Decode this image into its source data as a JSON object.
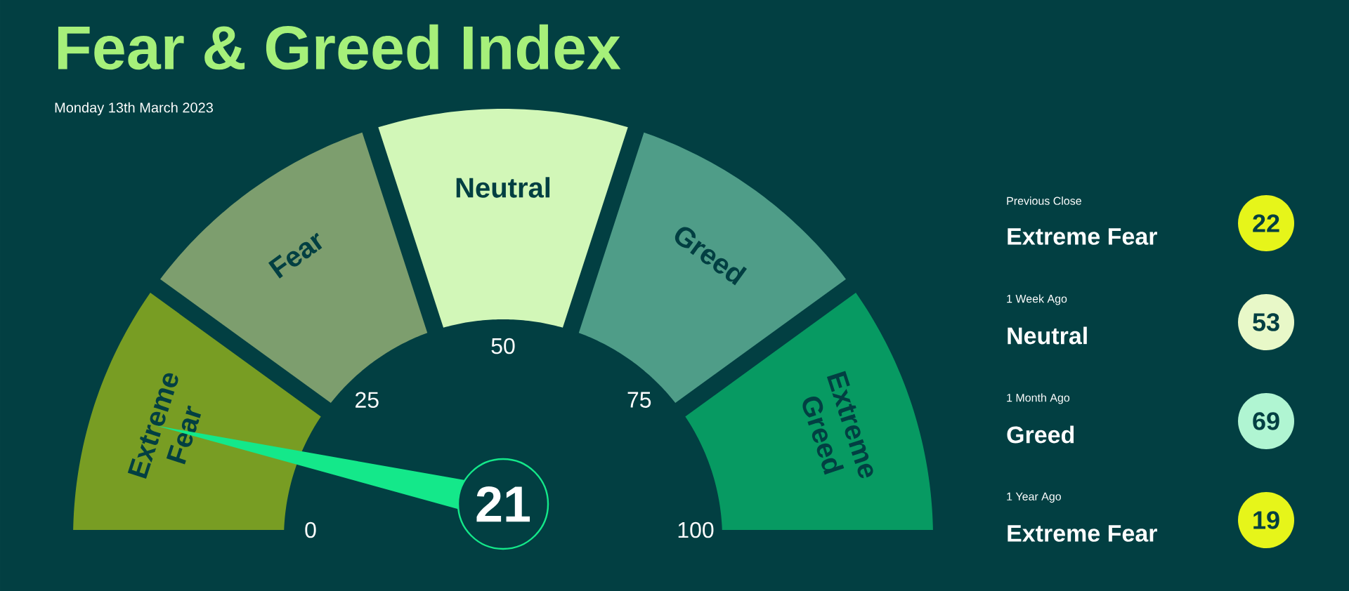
{
  "chart_data": [
    {
      "type": "donut",
      "title": "Fear & Greed Index",
      "subtitle": "Monday 13th March 2023",
      "categories": [
        "Extreme Fear",
        "Fear",
        "Neutral",
        "Greed",
        "Extreme Greed"
      ],
      "values": [
        20,
        20,
        20,
        20,
        20
      ],
      "colors": [
        "#789d23",
        "#7d9e6e",
        "#d2f7b8",
        "#4f9d88",
        "#079a62"
      ],
      "needle": "Extreme Fear",
      "annotations": [
        "21",
        "0",
        "25",
        "50",
        "75",
        "100"
      ]
    },
    {
      "type": "other",
      "categories": [
        "Previous Close",
        "1 Week Ago",
        "1 Month Ago",
        "1 Year Ago"
      ],
      "colors": [
        "#e6f51a",
        "#e8f8c8",
        "#b0f5d2",
        "#e6f51a"
      ],
      "annotations": [
        "Extreme Fear",
        "22",
        "Neutral",
        "53",
        "Greed",
        "69",
        "Extreme Fear",
        "19"
      ]
    }
  ]
}
